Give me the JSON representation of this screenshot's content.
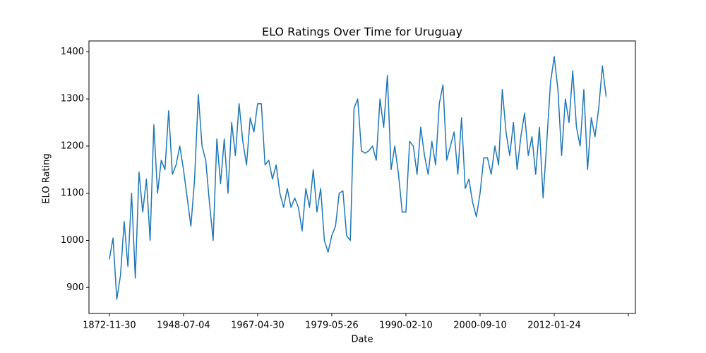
{
  "chart_data": {
    "type": "line",
    "title": "ELO Ratings Over Time for Uruguay",
    "x_label": "Date",
    "y_label": "ELO Rating",
    "color": "#1f77b4",
    "xlim": [
      -5.5,
      141.9
    ],
    "xticks": [
      {
        "value": 0,
        "label": "1872-11-30"
      },
      {
        "value": 20,
        "label": "1948-07-04"
      },
      {
        "value": 40,
        "label": "1967-04-30"
      },
      {
        "value": 60,
        "label": "1979-05-26"
      },
      {
        "value": 80,
        "label": "1990-02-10"
      },
      {
        "value": 100,
        "label": "2000-09-10"
      },
      {
        "value": 120,
        "label": "2012-01-24"
      },
      {
        "value": 140
      }
    ],
    "ylim": [
      845,
      1423
    ],
    "yticks": [
      900,
      1000,
      1100,
      1200,
      1300,
      1400
    ],
    "values": [
      960,
      1005,
      875,
      925,
      1040,
      945,
      1100,
      920,
      1145,
      1060,
      1130,
      1000,
      1245,
      1100,
      1170,
      1150,
      1275,
      1140,
      1160,
      1200,
      1150,
      1090,
      1030,
      1130,
      1310,
      1200,
      1170,
      1080,
      1000,
      1215,
      1120,
      1215,
      1100,
      1250,
      1180,
      1290,
      1210,
      1160,
      1260,
      1230,
      1290,
      1290,
      1160,
      1170,
      1130,
      1160,
      1100,
      1070,
      1110,
      1070,
      1090,
      1070,
      1020,
      1110,
      1070,
      1150,
      1060,
      1110,
      1000,
      975,
      1010,
      1030,
      1100,
      1105,
      1010,
      1000,
      1280,
      1300,
      1190,
      1185,
      1190,
      1200,
      1170,
      1300,
      1240,
      1350,
      1150,
      1200,
      1140,
      1060,
      1060,
      1210,
      1200,
      1140,
      1240,
      1180,
      1140,
      1210,
      1160,
      1290,
      1330,
      1170,
      1200,
      1230,
      1140,
      1260,
      1110,
      1130,
      1080,
      1050,
      1100,
      1175,
      1175,
      1140,
      1200,
      1160,
      1320,
      1230,
      1180,
      1250,
      1150,
      1220,
      1270,
      1180,
      1220,
      1140,
      1240,
      1090,
      1210,
      1335,
      1390,
      1320,
      1180,
      1300,
      1250,
      1360,
      1240,
      1200,
      1320,
      1150,
      1260,
      1220,
      1280,
      1370,
      1305
    ]
  }
}
